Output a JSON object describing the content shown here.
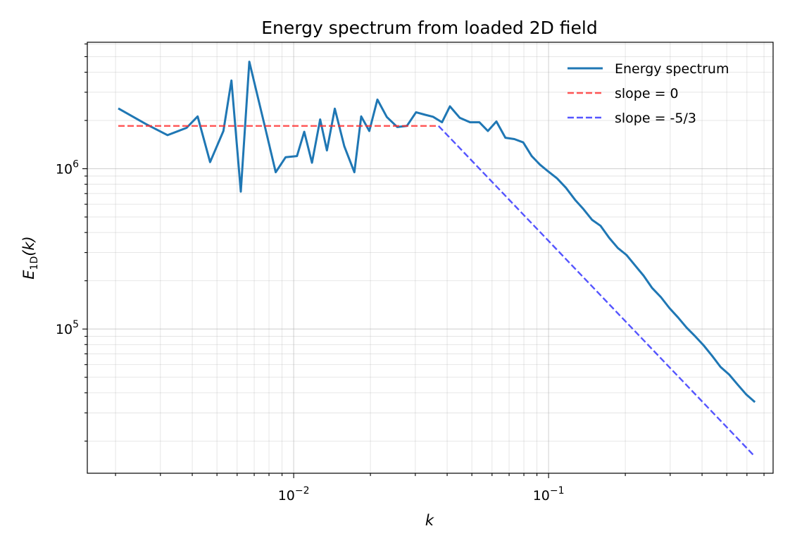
{
  "chart_data": {
    "type": "line",
    "title": "Energy spectrum from loaded 2D field",
    "xlabel": "k",
    "ylabel": "E_1D(k)",
    "ylabel_main": "E",
    "ylabel_sub": "1D",
    "ylabel_paren": "(k)",
    "xscale": "log",
    "yscale": "log",
    "xlim": [
      0.00155,
      0.76
    ],
    "ylim": [
      12600,
      6150000
    ],
    "grid": true,
    "legend_position": "upper right",
    "x_ticks": [
      {
        "value": 0.01,
        "label": "10",
        "exp": "−2"
      },
      {
        "value": 0.1,
        "label": "10",
        "exp": "−1"
      }
    ],
    "y_ticks": [
      {
        "value": 100000,
        "label": "10",
        "exp": "5"
      },
      {
        "value": 1000000,
        "label": "10",
        "exp": "6"
      }
    ],
    "series": [
      {
        "name": "Energy spectrum",
        "color": "#1f77b4",
        "style": "solid",
        "x": [
          0.00205,
          0.00263,
          0.0032,
          0.0038,
          0.0042,
          0.0047,
          0.0053,
          0.0057,
          0.0062,
          0.0067,
          0.0077,
          0.0085,
          0.0093,
          0.0103,
          0.011,
          0.0118,
          0.0127,
          0.0135,
          0.0145,
          0.0158,
          0.0173,
          0.0184,
          0.0198,
          0.0213,
          0.0232,
          0.0255,
          0.0278,
          0.0302,
          0.0328,
          0.0352,
          0.0382,
          0.041,
          0.0448,
          0.0492,
          0.0535,
          0.0578,
          0.0624,
          0.0677,
          0.0734,
          0.0795,
          0.0858,
          0.0925,
          0.0998,
          0.108,
          0.117,
          0.127,
          0.137,
          0.148,
          0.16,
          0.173,
          0.187,
          0.202,
          0.218,
          0.236,
          0.255,
          0.276,
          0.298,
          0.322,
          0.348,
          0.376,
          0.406,
          0.438,
          0.473,
          0.511,
          0.552,
          0.597,
          0.645
        ],
        "y": [
          2380000,
          1900000,
          1620000,
          1800000,
          2120000,
          1100000,
          1720000,
          3550000,
          720000,
          4650000,
          1850000,
          950000,
          1180000,
          1200000,
          1700000,
          1090000,
          2030000,
          1300000,
          2370000,
          1380000,
          950000,
          2120000,
          1720000,
          2700000,
          2100000,
          1820000,
          1850000,
          2250000,
          2170000,
          2110000,
          1950000,
          2450000,
          2080000,
          1950000,
          1950000,
          1720000,
          1970000,
          1560000,
          1530000,
          1460000,
          1200000,
          1060000,
          960000,
          870000,
          760000,
          640000,
          560000,
          480000,
          440000,
          370000,
          320000,
          290000,
          250000,
          215000,
          180000,
          158000,
          135000,
          118000,
          102000,
          90000,
          79000,
          68000,
          58000,
          52000,
          45000,
          39000,
          35000
        ]
      },
      {
        "name": "slope = 0",
        "color": "#ff2a2a",
        "style": "dashed",
        "x": [
          0.00205,
          0.037
        ],
        "y": [
          1850000,
          1850000
        ]
      },
      {
        "name": "slope = -5/3",
        "color": "#2a2aff",
        "style": "dashed",
        "x": [
          0.037,
          0.645
        ],
        "y": [
          1850000,
          16000
        ]
      }
    ]
  }
}
